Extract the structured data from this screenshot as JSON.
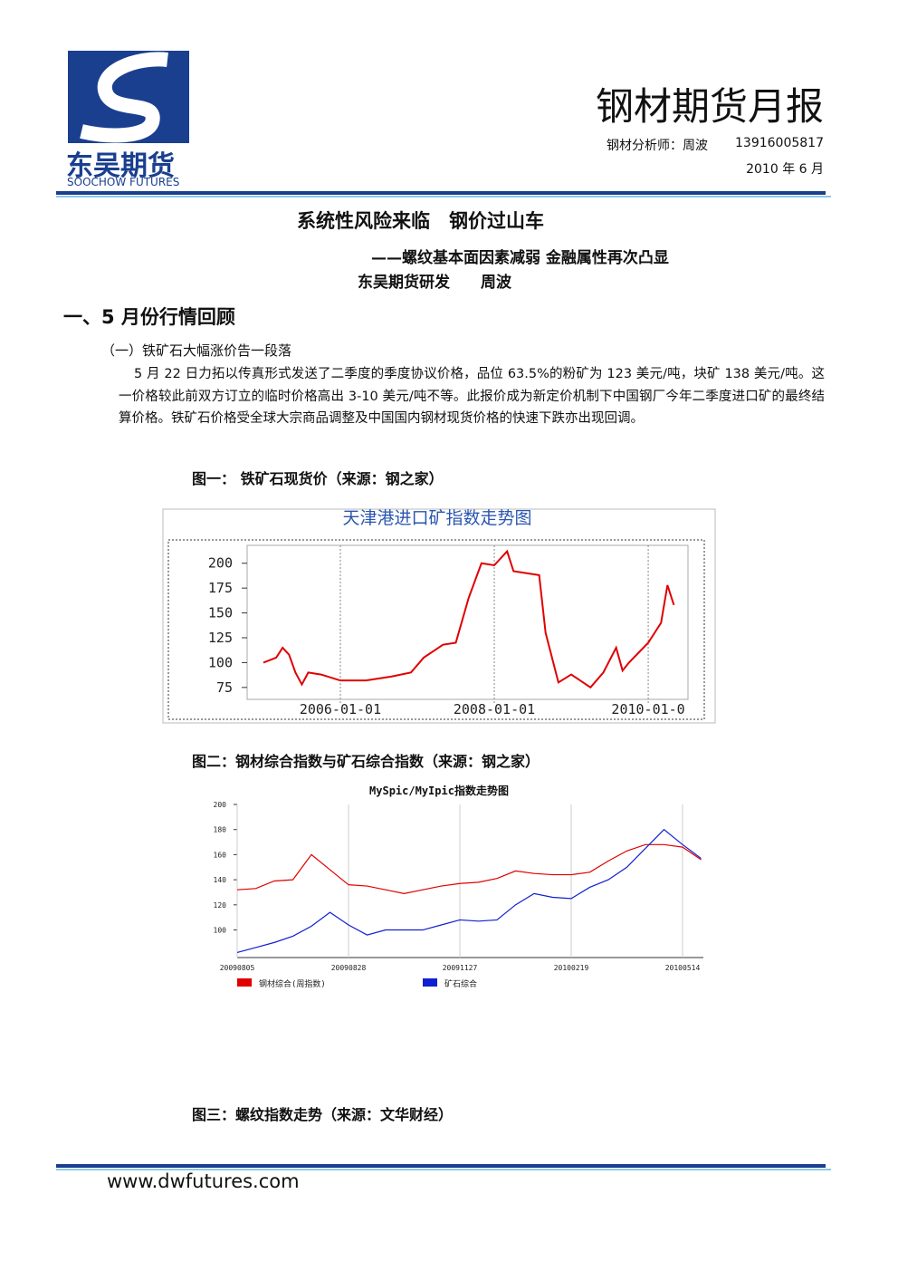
{
  "header": {
    "logo_cn": "东吴期货",
    "logo_en": "SOOCHOW FUTURES",
    "report_title": "钢材期货月报",
    "analyst": "钢材分析师：周波",
    "phone": "13916005817",
    "date": "2010 年 6 月"
  },
  "article": {
    "title": "系统性风险来临　钢价过山车",
    "subtitle": "——螺纹基本面因素减弱 金融属性再次凸显",
    "byline": "东吴期货研发　　周波",
    "section": "一、5 月份行情回顾",
    "subsection": "（一）铁矿石大幅涨价告一段落",
    "paragraph": "5 月 22 日力拓以传真形式发送了二季度的季度协议价格，品位 63.5%的粉矿为 123 美元/吨，块矿 138 美元/吨。这一价格较此前双方订立的临时价格高出 3-10 美元/吨不等。此报价成为新定价机制下中国钢厂今年二季度进口矿的最终结算价格。铁矿石价格受全球大宗商品调整及中国国内钢材现货价格的快速下跌亦出现回调。"
  },
  "figures": [
    {
      "caption": "图一： 铁矿石现货价（来源：钢之家）",
      "chart": {
        "type": "line",
        "title": "天津港进口矿指数走势图",
        "color": "#e00000",
        "grid": true,
        "x": [
          "2005-01-01",
          "2005-03-01",
          "2005-04-01",
          "2005-05-01",
          "2005-06-01",
          "2005-07-01",
          "2005-08-01",
          "2005-10-01",
          "2006-01-01",
          "2006-05-01",
          "2006-09-01",
          "2006-12-01",
          "2007-02-01",
          "2007-05-01",
          "2007-07-01",
          "2007-09-01",
          "2007-11-01",
          "2008-01-01",
          "2008-03-01",
          "2008-04-01",
          "2008-08-01",
          "2008-09-01",
          "2008-11-01",
          "2009-01-01",
          "2009-04-01",
          "2009-06-01",
          "2009-08-01",
          "2009-09-01",
          "2009-10-01",
          "2010-01-01",
          "2010-03-01",
          "2010-04-01",
          "2010-05-01"
        ],
        "values": [
          100,
          105,
          115,
          108,
          90,
          78,
          90,
          88,
          82,
          82,
          86,
          90,
          105,
          118,
          120,
          165,
          200,
          198,
          212,
          192,
          188,
          130,
          80,
          88,
          75,
          90,
          115,
          92,
          100,
          120,
          140,
          178,
          158
        ],
        "xlim": [
          "2004-10-15",
          "2010-07-07"
        ],
        "xticks": [
          "2006-01-01",
          "2008-01-01",
          {
            "value": "2010-01-01",
            "label": "2010-01-0"
          }
        ],
        "ylim": [
          63,
          218
        ],
        "yticks": [
          75,
          100,
          125,
          150,
          175,
          200
        ]
      }
    },
    {
      "caption": "图二：钢材综合指数与矿石综合指数（来源：钢之家）",
      "chart": {
        "type": "line",
        "title": "MySpic/MyIpic指数走势图",
        "grid": true,
        "categories": [
          "20090805",
          null,
          null,
          null,
          null,
          null,
          "20090828",
          null,
          null,
          null,
          null,
          null,
          "20091127",
          null,
          null,
          null,
          null,
          null,
          "20100219",
          null,
          null,
          null,
          null,
          null,
          "20100514",
          null
        ],
        "series": [
          {
            "name": "钢材综合(周指数)",
            "color": "#e00000",
            "values": [
              132,
              133,
              139,
              140,
              160,
              148,
              136,
              135,
              132,
              129,
              132,
              135,
              137,
              138,
              141,
              147,
              145,
              144,
              144,
              146,
              155,
              163,
              168,
              168,
              166,
              156
            ]
          },
          {
            "name": "矿石综合",
            "color": "#1020d0",
            "values": [
              82,
              86,
              90,
              95,
              103,
              114,
              104,
              96,
              100,
              100,
              100,
              104,
              108,
              107,
              108,
              120,
              129,
              126,
              125,
              134,
              140,
              150,
              165,
              180,
              168,
              157
            ]
          }
        ],
        "ylim": [
          78,
          200
        ],
        "yticks": [
          100,
          120,
          140,
          160,
          180,
          200
        ]
      }
    },
    {
      "caption": "图三：螺纹指数走势（来源：文华财经）"
    }
  ],
  "footer": {
    "url": "www.dwfutures.com"
  }
}
